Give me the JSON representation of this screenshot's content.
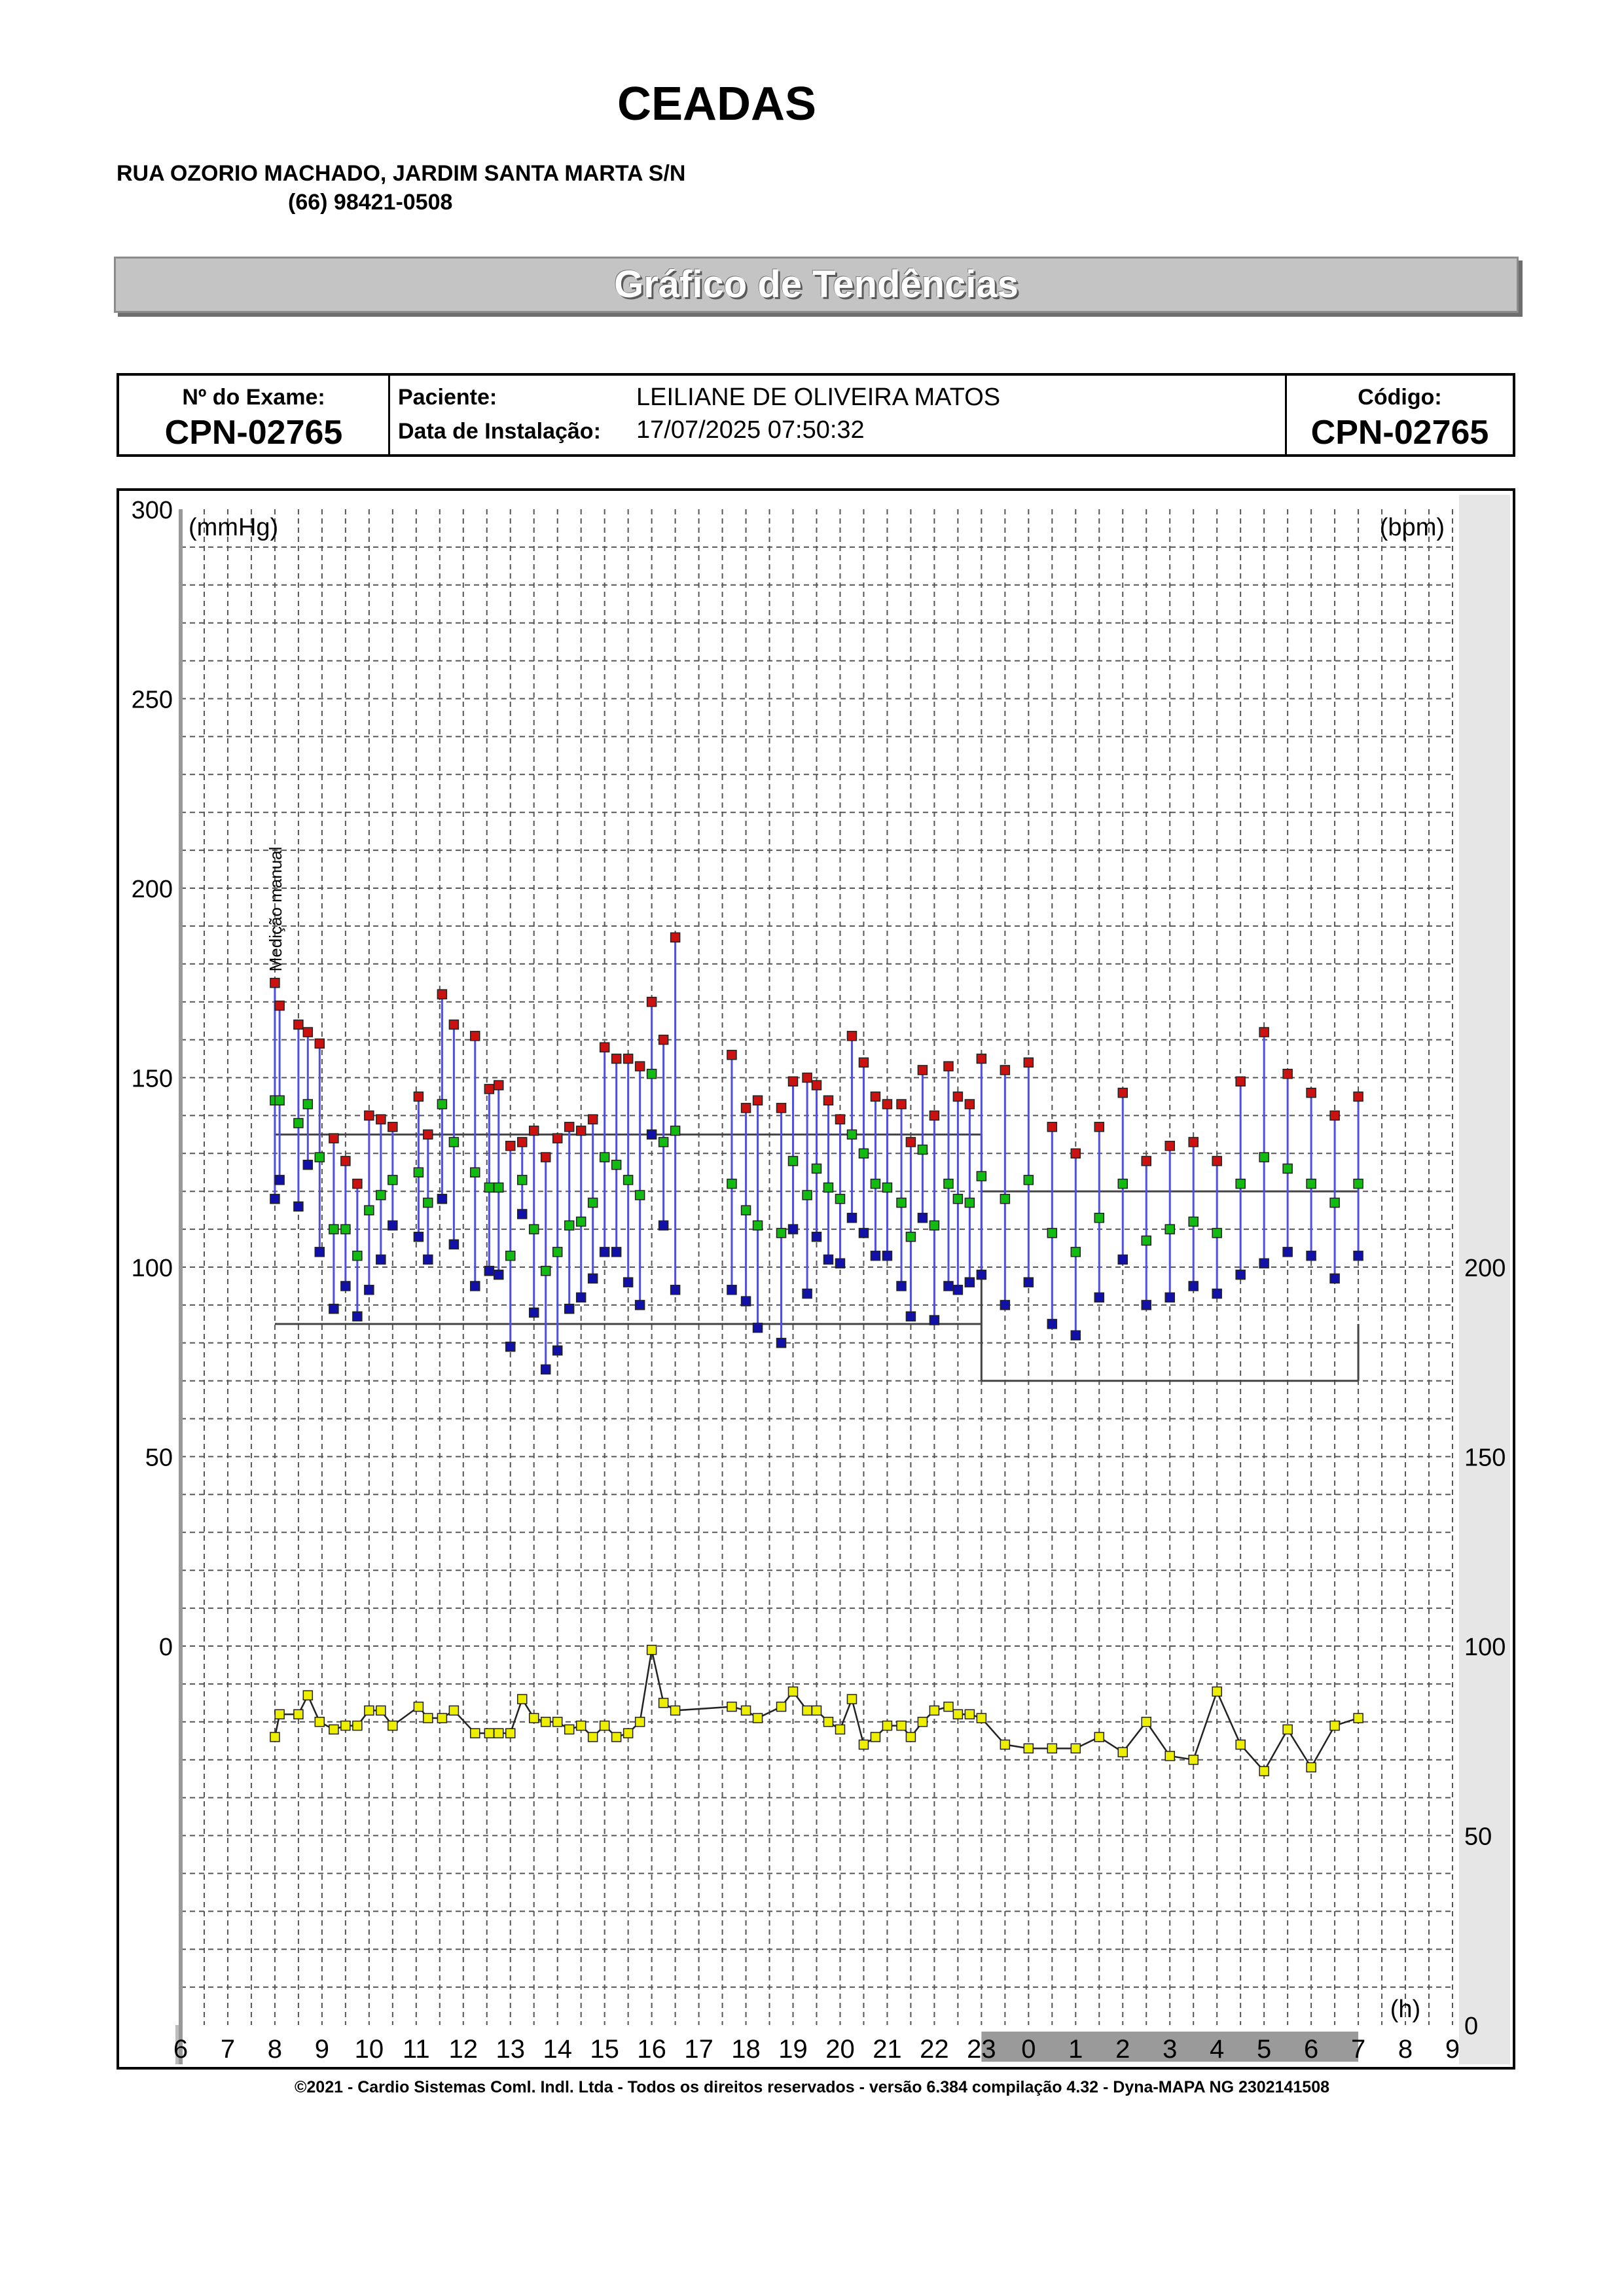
{
  "header": {
    "clinic_name": "CEADAS",
    "address": "RUA OZORIO MACHADO, JARDIM SANTA MARTA S/N",
    "phone": "(66) 98421-0508"
  },
  "banner": {
    "title": "Gráfico de Tendências"
  },
  "info": {
    "exam_label": "Nº do Exame:",
    "exam_value": "CPN-02765",
    "patient_label": "Paciente:",
    "patient_value": "LEILIANE DE OLIVEIRA  MATOS",
    "install_label": "Data de Instalação:",
    "install_value": "17/07/2025 07:50:32",
    "code_label": "Código:",
    "code_value": "CPN-02765"
  },
  "chart_data": {
    "type": "scatter",
    "title": "Gráfico de Tendências",
    "ylabel_left": "(mmHg)",
    "ylabel_right": "(bpm)",
    "xlabel": "(h)",
    "left_ticks": [
      "300",
      "250",
      "200",
      "150",
      "100",
      "50",
      "0"
    ],
    "right_ticks": [
      "200",
      "150",
      "100",
      "50",
      "0"
    ],
    "x_tick_labels": [
      "6",
      "7",
      "8",
      "9",
      "10",
      "11",
      "12",
      "13",
      "14",
      "15",
      "16",
      "17",
      "18",
      "19",
      "20",
      "21",
      "22",
      "23",
      "0",
      "1",
      "2",
      "3",
      "4",
      "5",
      "6",
      "7",
      "8",
      "9"
    ],
    "ylim_mmhg": [
      -100,
      300
    ],
    "ylim_bpm": [
      0,
      200
    ],
    "sleep_period": [
      "23",
      "7"
    ],
    "annotation": "Medição manual",
    "grid": true,
    "limits": {
      "systolic_awake": 135,
      "diastolic_awake": 85,
      "systolic_sleep": 120,
      "diastolic_sleep": 70
    },
    "colors": {
      "systolic": "#cc1111",
      "mean": "#11bb11",
      "diastolic": "#1111aa",
      "heart_rate": "#eeee00",
      "range_line": "#5050dd",
      "limit_line": "#444444"
    },
    "series": [
      {
        "name": "systolic",
        "unit": "mmHg",
        "points": [
          [
            8.0,
            175
          ],
          [
            8.1,
            169
          ],
          [
            8.5,
            164
          ],
          [
            8.7,
            162
          ],
          [
            8.95,
            159
          ],
          [
            9.25,
            134
          ],
          [
            9.5,
            128
          ],
          [
            9.75,
            122
          ],
          [
            10.0,
            140
          ],
          [
            10.25,
            139
          ],
          [
            10.5,
            137
          ],
          [
            11.05,
            145
          ],
          [
            11.25,
            135
          ],
          [
            11.55,
            172
          ],
          [
            11.8,
            164
          ],
          [
            12.25,
            161
          ],
          [
            12.55,
            147
          ],
          [
            12.75,
            148
          ],
          [
            13.0,
            132
          ],
          [
            13.25,
            133
          ],
          [
            13.5,
            136
          ],
          [
            13.75,
            129
          ],
          [
            14.0,
            134
          ],
          [
            14.25,
            137
          ],
          [
            14.5,
            136
          ],
          [
            14.75,
            139
          ],
          [
            15.0,
            158
          ],
          [
            15.25,
            155
          ],
          [
            15.5,
            155
          ],
          [
            15.75,
            153
          ],
          [
            16.0,
            170
          ],
          [
            16.25,
            160
          ],
          [
            16.5,
            187
          ],
          [
            17.7,
            156
          ],
          [
            18.0,
            142
          ],
          [
            18.25,
            144
          ],
          [
            18.75,
            142
          ],
          [
            19.0,
            149
          ],
          [
            19.3,
            150
          ],
          [
            19.5,
            148
          ],
          [
            19.75,
            144
          ],
          [
            20.0,
            139
          ],
          [
            20.25,
            161
          ],
          [
            20.5,
            154
          ],
          [
            20.75,
            145
          ],
          [
            21.0,
            143
          ],
          [
            21.3,
            143
          ],
          [
            21.5,
            133
          ],
          [
            21.75,
            152
          ],
          [
            22.0,
            140
          ],
          [
            22.3,
            153
          ],
          [
            22.5,
            145
          ],
          [
            22.75,
            143
          ],
          [
            23.0,
            155
          ],
          [
            23.5,
            152
          ],
          [
            24.0,
            154
          ],
          [
            24.5,
            137
          ],
          [
            25.0,
            130
          ],
          [
            25.5,
            137
          ],
          [
            26.0,
            146
          ],
          [
            26.5,
            128
          ],
          [
            27.0,
            132
          ],
          [
            27.5,
            133
          ],
          [
            28.0,
            128
          ],
          [
            28.5,
            149
          ],
          [
            29.0,
            162
          ],
          [
            29.5,
            151
          ],
          [
            30.0,
            146
          ],
          [
            30.5,
            140
          ],
          [
            31.0,
            145
          ]
        ]
      },
      {
        "name": "mean",
        "unit": "mmHg",
        "points": [
          [
            8.0,
            144
          ],
          [
            8.1,
            144
          ],
          [
            8.5,
            138
          ],
          [
            8.7,
            143
          ],
          [
            8.95,
            129
          ],
          [
            9.25,
            110
          ],
          [
            9.5,
            110
          ],
          [
            9.75,
            103
          ],
          [
            10.0,
            115
          ],
          [
            10.25,
            119
          ],
          [
            10.5,
            123
          ],
          [
            11.05,
            125
          ],
          [
            11.25,
            117
          ],
          [
            11.55,
            143
          ],
          [
            11.8,
            133
          ],
          [
            12.25,
            125
          ],
          [
            12.55,
            121
          ],
          [
            12.75,
            121
          ],
          [
            13.0,
            103
          ],
          [
            13.25,
            123
          ],
          [
            13.5,
            110
          ],
          [
            13.75,
            99
          ],
          [
            14.0,
            104
          ],
          [
            14.25,
            111
          ],
          [
            14.5,
            112
          ],
          [
            14.75,
            117
          ],
          [
            15.0,
            129
          ],
          [
            15.25,
            127
          ],
          [
            15.5,
            123
          ],
          [
            15.75,
            119
          ],
          [
            16.0,
            151
          ],
          [
            16.25,
            133
          ],
          [
            16.5,
            136
          ],
          [
            17.7,
            122
          ],
          [
            18.0,
            115
          ],
          [
            18.25,
            111
          ],
          [
            18.75,
            109
          ],
          [
            19.0,
            128
          ],
          [
            19.3,
            119
          ],
          [
            19.5,
            126
          ],
          [
            19.75,
            121
          ],
          [
            20.0,
            118
          ],
          [
            20.25,
            135
          ],
          [
            20.5,
            130
          ],
          [
            20.75,
            122
          ],
          [
            21.0,
            121
          ],
          [
            21.3,
            117
          ],
          [
            21.5,
            108
          ],
          [
            21.75,
            131
          ],
          [
            22.0,
            111
          ],
          [
            22.3,
            122
          ],
          [
            22.5,
            118
          ],
          [
            22.75,
            117
          ],
          [
            23.0,
            124
          ],
          [
            23.5,
            118
          ],
          [
            24.0,
            123
          ],
          [
            24.5,
            109
          ],
          [
            25.0,
            104
          ],
          [
            25.5,
            113
          ],
          [
            26.0,
            122
          ],
          [
            26.5,
            107
          ],
          [
            27.0,
            110
          ],
          [
            27.5,
            112
          ],
          [
            28.0,
            109
          ],
          [
            28.5,
            122
          ],
          [
            29.0,
            129
          ],
          [
            29.5,
            126
          ],
          [
            30.0,
            122
          ],
          [
            30.5,
            117
          ],
          [
            31.0,
            122
          ]
        ]
      },
      {
        "name": "diastolic",
        "unit": "mmHg",
        "points": [
          [
            8.0,
            118
          ],
          [
            8.1,
            123
          ],
          [
            8.5,
            116
          ],
          [
            8.7,
            127
          ],
          [
            8.95,
            104
          ],
          [
            9.25,
            89
          ],
          [
            9.5,
            95
          ],
          [
            9.75,
            87
          ],
          [
            10.0,
            94
          ],
          [
            10.25,
            102
          ],
          [
            10.5,
            111
          ],
          [
            11.05,
            108
          ],
          [
            11.25,
            102
          ],
          [
            11.55,
            118
          ],
          [
            11.8,
            106
          ],
          [
            12.25,
            95
          ],
          [
            12.55,
            99
          ],
          [
            12.75,
            98
          ],
          [
            13.0,
            79
          ],
          [
            13.25,
            114
          ],
          [
            13.5,
            88
          ],
          [
            13.75,
            73
          ],
          [
            14.0,
            78
          ],
          [
            14.25,
            89
          ],
          [
            14.5,
            92
          ],
          [
            14.75,
            97
          ],
          [
            15.0,
            104
          ],
          [
            15.25,
            104
          ],
          [
            15.5,
            96
          ],
          [
            15.75,
            90
          ],
          [
            16.0,
            135
          ],
          [
            16.25,
            111
          ],
          [
            16.5,
            94
          ],
          [
            17.7,
            94
          ],
          [
            18.0,
            91
          ],
          [
            18.25,
            84
          ],
          [
            18.75,
            80
          ],
          [
            19.0,
            110
          ],
          [
            19.3,
            93
          ],
          [
            19.5,
            108
          ],
          [
            19.75,
            102
          ],
          [
            20.0,
            101
          ],
          [
            20.25,
            113
          ],
          [
            20.5,
            109
          ],
          [
            20.75,
            103
          ],
          [
            21.0,
            103
          ],
          [
            21.3,
            95
          ],
          [
            21.5,
            87
          ],
          [
            21.75,
            113
          ],
          [
            22.0,
            86
          ],
          [
            22.3,
            95
          ],
          [
            22.5,
            94
          ],
          [
            22.75,
            96
          ],
          [
            23.0,
            98
          ],
          [
            23.5,
            90
          ],
          [
            24.0,
            96
          ],
          [
            24.5,
            85
          ],
          [
            25.0,
            82
          ],
          [
            25.5,
            92
          ],
          [
            26.0,
            102
          ],
          [
            26.5,
            90
          ],
          [
            27.0,
            92
          ],
          [
            27.5,
            95
          ],
          [
            28.0,
            93
          ],
          [
            28.5,
            98
          ],
          [
            29.0,
            101
          ],
          [
            29.5,
            104
          ],
          [
            30.0,
            103
          ],
          [
            30.5,
            97
          ],
          [
            31.0,
            103
          ]
        ]
      },
      {
        "name": "heart_rate",
        "unit": "bpm",
        "points": [
          [
            8.0,
            76
          ],
          [
            8.1,
            82
          ],
          [
            8.5,
            82
          ],
          [
            8.7,
            87
          ],
          [
            8.95,
            80
          ],
          [
            9.25,
            78
          ],
          [
            9.5,
            79
          ],
          [
            9.75,
            79
          ],
          [
            10.0,
            83
          ],
          [
            10.25,
            83
          ],
          [
            10.5,
            79
          ],
          [
            11.05,
            84
          ],
          [
            11.25,
            81
          ],
          [
            11.55,
            81
          ],
          [
            11.8,
            83
          ],
          [
            12.25,
            77
          ],
          [
            12.55,
            77
          ],
          [
            12.75,
            77
          ],
          [
            13.0,
            77
          ],
          [
            13.25,
            86
          ],
          [
            13.5,
            81
          ],
          [
            13.75,
            80
          ],
          [
            14.0,
            80
          ],
          [
            14.25,
            78
          ],
          [
            14.5,
            79
          ],
          [
            14.75,
            76
          ],
          [
            15.0,
            79
          ],
          [
            15.25,
            76
          ],
          [
            15.5,
            77
          ],
          [
            15.75,
            80
          ],
          [
            16.0,
            99
          ],
          [
            16.25,
            85
          ],
          [
            16.5,
            83
          ],
          [
            17.7,
            84
          ],
          [
            18.0,
            83
          ],
          [
            18.25,
            81
          ],
          [
            18.75,
            84
          ],
          [
            19.0,
            88
          ],
          [
            19.3,
            83
          ],
          [
            19.5,
            83
          ],
          [
            19.75,
            80
          ],
          [
            20.0,
            78
          ],
          [
            20.25,
            86
          ],
          [
            20.5,
            74
          ],
          [
            20.75,
            76
          ],
          [
            21.0,
            79
          ],
          [
            21.3,
            79
          ],
          [
            21.5,
            76
          ],
          [
            21.75,
            80
          ],
          [
            22.0,
            83
          ],
          [
            22.3,
            84
          ],
          [
            22.5,
            82
          ],
          [
            22.75,
            82
          ],
          [
            23.0,
            81
          ],
          [
            23.5,
            74
          ],
          [
            24.0,
            73
          ],
          [
            24.5,
            73
          ],
          [
            25.0,
            73
          ],
          [
            25.5,
            76
          ],
          [
            26.0,
            72
          ],
          [
            26.5,
            80
          ],
          [
            27.0,
            71
          ],
          [
            27.5,
            70
          ],
          [
            28.0,
            88
          ],
          [
            28.5,
            74
          ],
          [
            29.0,
            67
          ],
          [
            29.5,
            78
          ],
          [
            30.0,
            68
          ],
          [
            30.5,
            79
          ],
          [
            31.0,
            81
          ]
        ]
      }
    ]
  },
  "footer": {
    "text": "©2021 - Cardio Sistemas Coml. Indl. Ltda - Todos os direitos reservados - versão 6.384 compilação 4.32 - Dyna-MAPA NG 2302141508"
  }
}
